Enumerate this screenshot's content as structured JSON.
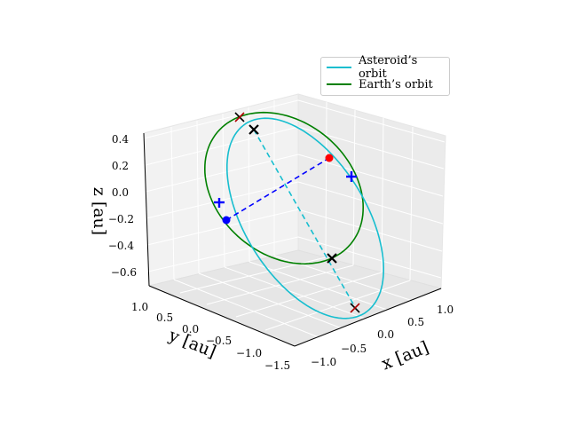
{
  "chart_data": {
    "type": "line3d",
    "title": "",
    "xlabel": "x [au]",
    "ylabel": "y [au]",
    "zlabel": "z [au]",
    "xlim": [
      -1.2,
      1.2
    ],
    "ylim": [
      -1.6,
      1.1
    ],
    "zlim": [
      -0.7,
      0.45
    ],
    "x_ticks": [
      "−1.0",
      "−0.5",
      "0.0",
      "0.5",
      "1.0"
    ],
    "y_ticks": [
      "1.0",
      "0.5",
      "0.0",
      "−0.5",
      "−1.0",
      "−1.5"
    ],
    "z_ticks": [
      "0.4",
      "0.2",
      "0.0",
      "−0.2",
      "−0.4",
      "−0.6"
    ],
    "grid": true,
    "legend_position": "top-right",
    "series": [
      {
        "name": "Asteroid’s orbit",
        "color": "#17becf",
        "values": {
          "a": 1.2,
          "e": 0.2,
          "i_deg": 40,
          "Omega_deg": 135,
          "omega_deg": 30
        }
      },
      {
        "name": "Earth’s orbit",
        "color": "#008000",
        "values": {
          "radius": 1.0,
          "inclination_deg": 0
        }
      }
    ],
    "markers": [
      {
        "kind": "node-x",
        "color": "#000000",
        "note": "line of nodes crossings"
      },
      {
        "kind": "red-x",
        "color": "#8b0000",
        "note": "projected node markers"
      },
      {
        "kind": "dot",
        "color": "#0000ff"
      },
      {
        "kind": "dot",
        "color": "#ff0000"
      },
      {
        "kind": "plus",
        "color": "#0000ff"
      }
    ]
  },
  "legend": {
    "asteroid_label": "Asteroid’s orbit",
    "earth_label": "Earth’s orbit",
    "asteroid_color": "#17becf",
    "earth_color": "#008000"
  }
}
